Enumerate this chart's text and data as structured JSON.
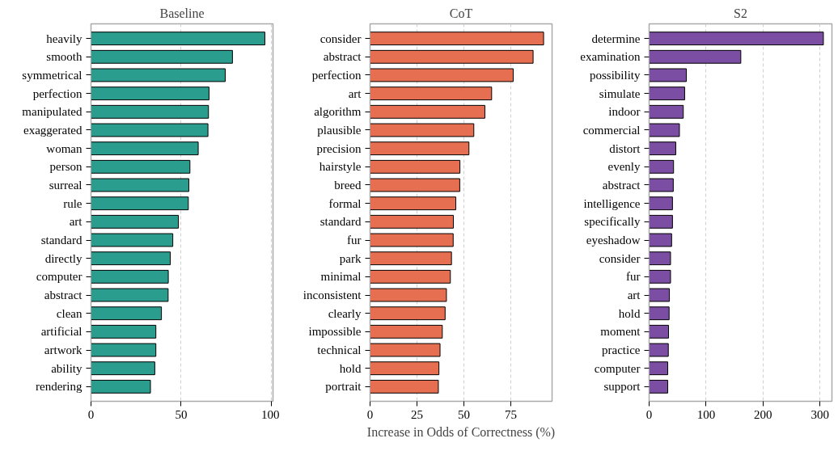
{
  "chart_data": [
    {
      "type": "bar",
      "orientation": "horizontal",
      "title": "Baseline",
      "categories": [
        "heavily",
        "smooth",
        "symmetrical",
        "perfection",
        "manipulated",
        "exaggerated",
        "woman",
        "person",
        "surreal",
        "rule",
        "art",
        "standard",
        "directly",
        "computer",
        "abstract",
        "clean",
        "artificial",
        "artwork",
        "ability",
        "rendering"
      ],
      "values": [
        96.5,
        78.5,
        74.5,
        65.5,
        65.2,
        64.9,
        59.5,
        54.9,
        54.3,
        54.0,
        48.5,
        45.4,
        44.0,
        42.9,
        42.8,
        39.1,
        36.0,
        36.0,
        35.4,
        33.0
      ],
      "color": "#2a9d8f",
      "xlim": [
        0,
        101
      ],
      "xticks": [
        0,
        50,
        100
      ],
      "grid": "x",
      "legend": false
    },
    {
      "type": "bar",
      "orientation": "horizontal",
      "title": "CoT",
      "xlabel": "Increase in Odds of Correctness (%)",
      "categories": [
        "consider",
        "abstract",
        "perfection",
        "art",
        "algorithm",
        "plausible",
        "precision",
        "hairstyle",
        "breed",
        "formal",
        "standard",
        "fur",
        "park",
        "minimal",
        "inconsistent",
        "clearly",
        "impossible",
        "technical",
        "hold",
        "portrait"
      ],
      "values": [
        92.5,
        86.9,
        76.3,
        64.8,
        61.2,
        55.3,
        52.7,
        47.9,
        47.8,
        45.7,
        44.4,
        44.3,
        43.4,
        42.8,
        40.7,
        40.0,
        38.5,
        37.3,
        36.7,
        36.4
      ],
      "color": "#e76f51",
      "xlim": [
        0,
        97
      ],
      "xticks": [
        0,
        25,
        50,
        75
      ],
      "grid": "x",
      "legend": false
    },
    {
      "type": "bar",
      "orientation": "horizontal",
      "title": "S2",
      "categories": [
        "determine",
        "examination",
        "possibility",
        "simulate",
        "indoor",
        "commercial",
        "distort",
        "evenly",
        "abstract",
        "intelligence",
        "specifically",
        "eyeshadow",
        "consider",
        "fur",
        "art",
        "hold",
        "moment",
        "practice",
        "computer",
        "support"
      ],
      "values": [
        306,
        161,
        65.4,
        62.4,
        60,
        53.2,
        46.8,
        42.9,
        42.4,
        41,
        41,
        39.5,
        37.6,
        37.6,
        35.6,
        35.1,
        34.1,
        33.7,
        32.7,
        32.7
      ],
      "color": "#7b4ea3",
      "xlim": [
        0,
        321
      ],
      "xticks": [
        0,
        100,
        200,
        300
      ],
      "grid": "x",
      "legend": false
    }
  ]
}
